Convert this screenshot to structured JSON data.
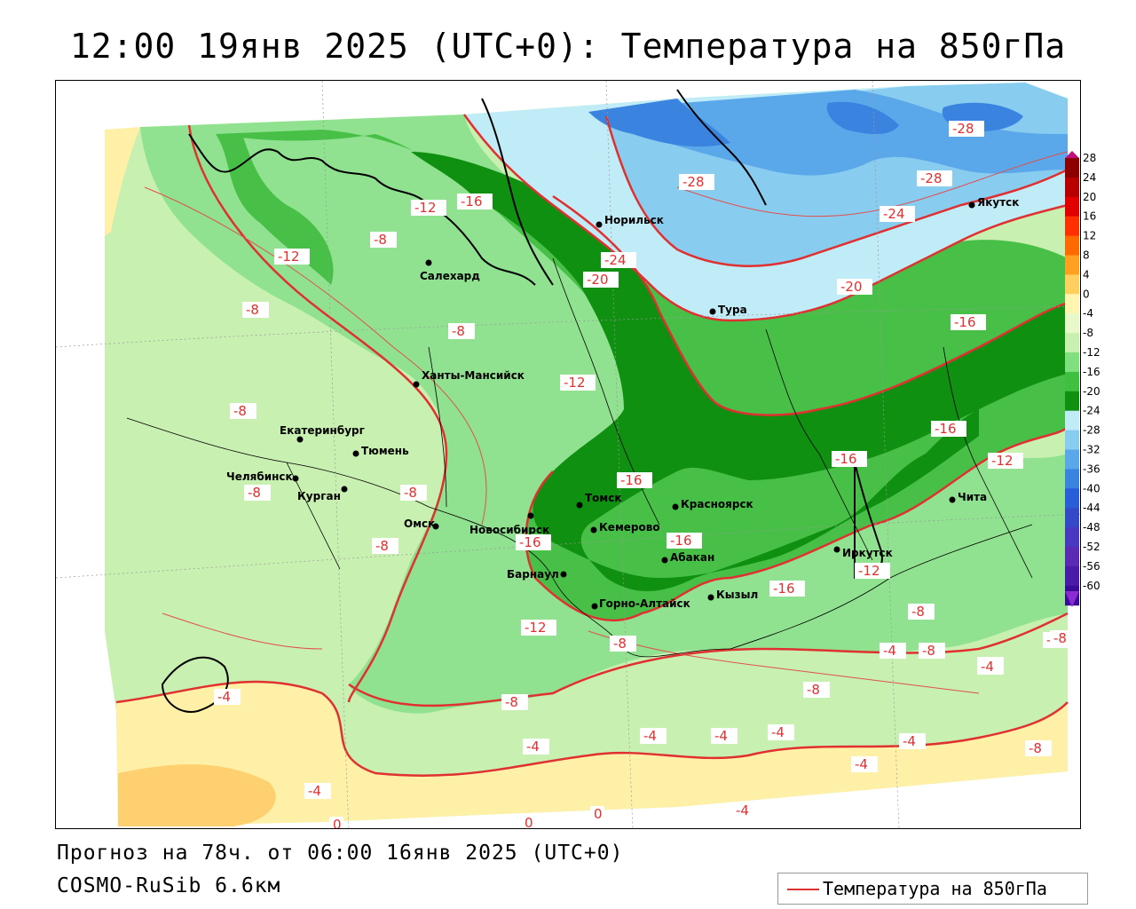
{
  "title": "12:00 19янв 2025 (UTC+0): Температура на 850гПа",
  "forecast": "Прогноз на 78ч. от 06:00 16янв 2025 (UTC+0)",
  "model": "COSMO-RuSib 6.6км",
  "legend": {
    "label": "Температура на 850гПа",
    "line_color": "#e03030"
  },
  "colorbar": {
    "ticks": [
      "28",
      "24",
      "20",
      "16",
      "12",
      "8",
      "4",
      "0",
      "-4",
      "-8",
      "-12",
      "-16",
      "-20",
      "-24",
      "-28",
      "-32",
      "-36",
      "-40",
      "-44",
      "-48",
      "-52",
      "-56",
      "-60"
    ],
    "colors": [
      "#8c0000",
      "#b80000",
      "#e00000",
      "#ff3000",
      "#ff6a00",
      "#ffa020",
      "#ffd060",
      "#fff4b0",
      "#e8f8c8",
      "#c8f0b0",
      "#80e080",
      "#40c040",
      "#109010",
      "#c0ecf8",
      "#88ccf0",
      "#5aa8ea",
      "#3a84e0",
      "#2a5ed8",
      "#3448c8",
      "#4a38c0",
      "#5a2ab4",
      "#4a1aa8",
      "#3a0a98"
    ]
  },
  "cities": [
    {
      "name": "Норильск"
    },
    {
      "name": "Салехард"
    },
    {
      "name": "Якутск"
    },
    {
      "name": "Тура"
    },
    {
      "name": "Ханты-Мансийск"
    },
    {
      "name": "Екатеринбург"
    },
    {
      "name": "Тюмень"
    },
    {
      "name": "Челябинск"
    },
    {
      "name": "Курган"
    },
    {
      "name": "Омск"
    },
    {
      "name": "Новосибирск"
    },
    {
      "name": "Томск"
    },
    {
      "name": "Кемерово"
    },
    {
      "name": "Красноярск"
    },
    {
      "name": "Абакан"
    },
    {
      "name": "Барнаул"
    },
    {
      "name": "Горно-Алтайск"
    },
    {
      "name": "Кызыл"
    },
    {
      "name": "Иркутск"
    },
    {
      "name": "Чита"
    }
  ],
  "isotherm_labels": [
    "-12",
    "-16",
    "-8",
    "-12",
    "-8",
    "-8",
    "-8",
    "-8",
    "-8",
    "-8",
    "-12",
    "-16",
    "-16",
    "-16",
    "-20",
    "-24",
    "-28",
    "-28",
    "-28",
    "-24",
    "-20",
    "-16",
    "-16",
    "-16",
    "-12",
    "-12",
    "-16",
    "-12",
    "-8",
    "-8",
    "-8",
    "-8",
    "-4",
    "-8",
    "-4",
    "-8",
    "-4",
    "-4",
    "-4",
    "-4",
    "-4",
    "-4",
    "-8",
    "-4",
    "-4",
    "-8",
    "-4",
    "-4",
    "0",
    "0",
    "0"
  ]
}
